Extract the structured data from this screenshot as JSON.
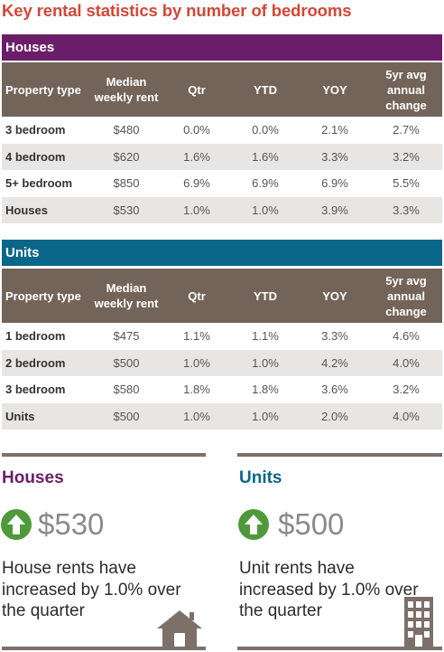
{
  "title": "Key rental statistics by number of bedrooms",
  "columns": {
    "type": "Property type",
    "median": "Median weekly rent",
    "qtr": "Qtr",
    "ytd": "YTD",
    "yoy": "YOY",
    "avg5": "5yr avg annual change"
  },
  "houses": {
    "heading": "Houses",
    "rows": [
      {
        "type": "3 bedroom",
        "median": "$480",
        "qtr": "0.0%",
        "ytd": "0.0%",
        "yoy": "2.1%",
        "avg5": "2.7%"
      },
      {
        "type": "4 bedroom",
        "median": "$620",
        "qtr": "1.6%",
        "ytd": "1.6%",
        "yoy": "3.3%",
        "avg5": "3.2%"
      },
      {
        "type": "5+ bedroom",
        "median": "$850",
        "qtr": "6.9%",
        "ytd": "6.9%",
        "yoy": "6.9%",
        "avg5": "5.5%"
      },
      {
        "type": "Houses",
        "median": "$530",
        "qtr": "1.0%",
        "ytd": "1.0%",
        "yoy": "3.9%",
        "avg5": "3.3%"
      }
    ]
  },
  "units": {
    "heading": "Units",
    "rows": [
      {
        "type": "1 bedroom",
        "median": "$475",
        "qtr": "1.1%",
        "ytd": "1.1%",
        "yoy": "3.3%",
        "avg5": "4.6%"
      },
      {
        "type": "2 bedroom",
        "median": "$500",
        "qtr": "1.0%",
        "ytd": "1.0%",
        "yoy": "4.2%",
        "avg5": "4.0%"
      },
      {
        "type": "3 bedroom",
        "median": "$580",
        "qtr": "1.8%",
        "ytd": "1.8%",
        "yoy": "3.6%",
        "avg5": "3.2%"
      },
      {
        "type": "Units",
        "median": "$500",
        "qtr": "1.0%",
        "ytd": "1.0%",
        "yoy": "2.0%",
        "avg5": "4.0%"
      }
    ]
  },
  "summary": {
    "houses": {
      "title": "Houses",
      "value": "$530",
      "description": "House rents have increased by 1.0% over the quarter",
      "icon": "house-icon"
    },
    "units": {
      "title": "Units",
      "value": "$500",
      "description": "Unit rents have increased by 1.0% over the quarter",
      "icon": "building-icon"
    }
  },
  "colors": {
    "title": "#d54634",
    "houses_accent": "#6c1d6a",
    "units_accent": "#0a6789",
    "table_header": "#736459",
    "row_alt": "#e8e6e5",
    "up_arrow": "#4e9a3a",
    "icon": "#7d7069"
  }
}
